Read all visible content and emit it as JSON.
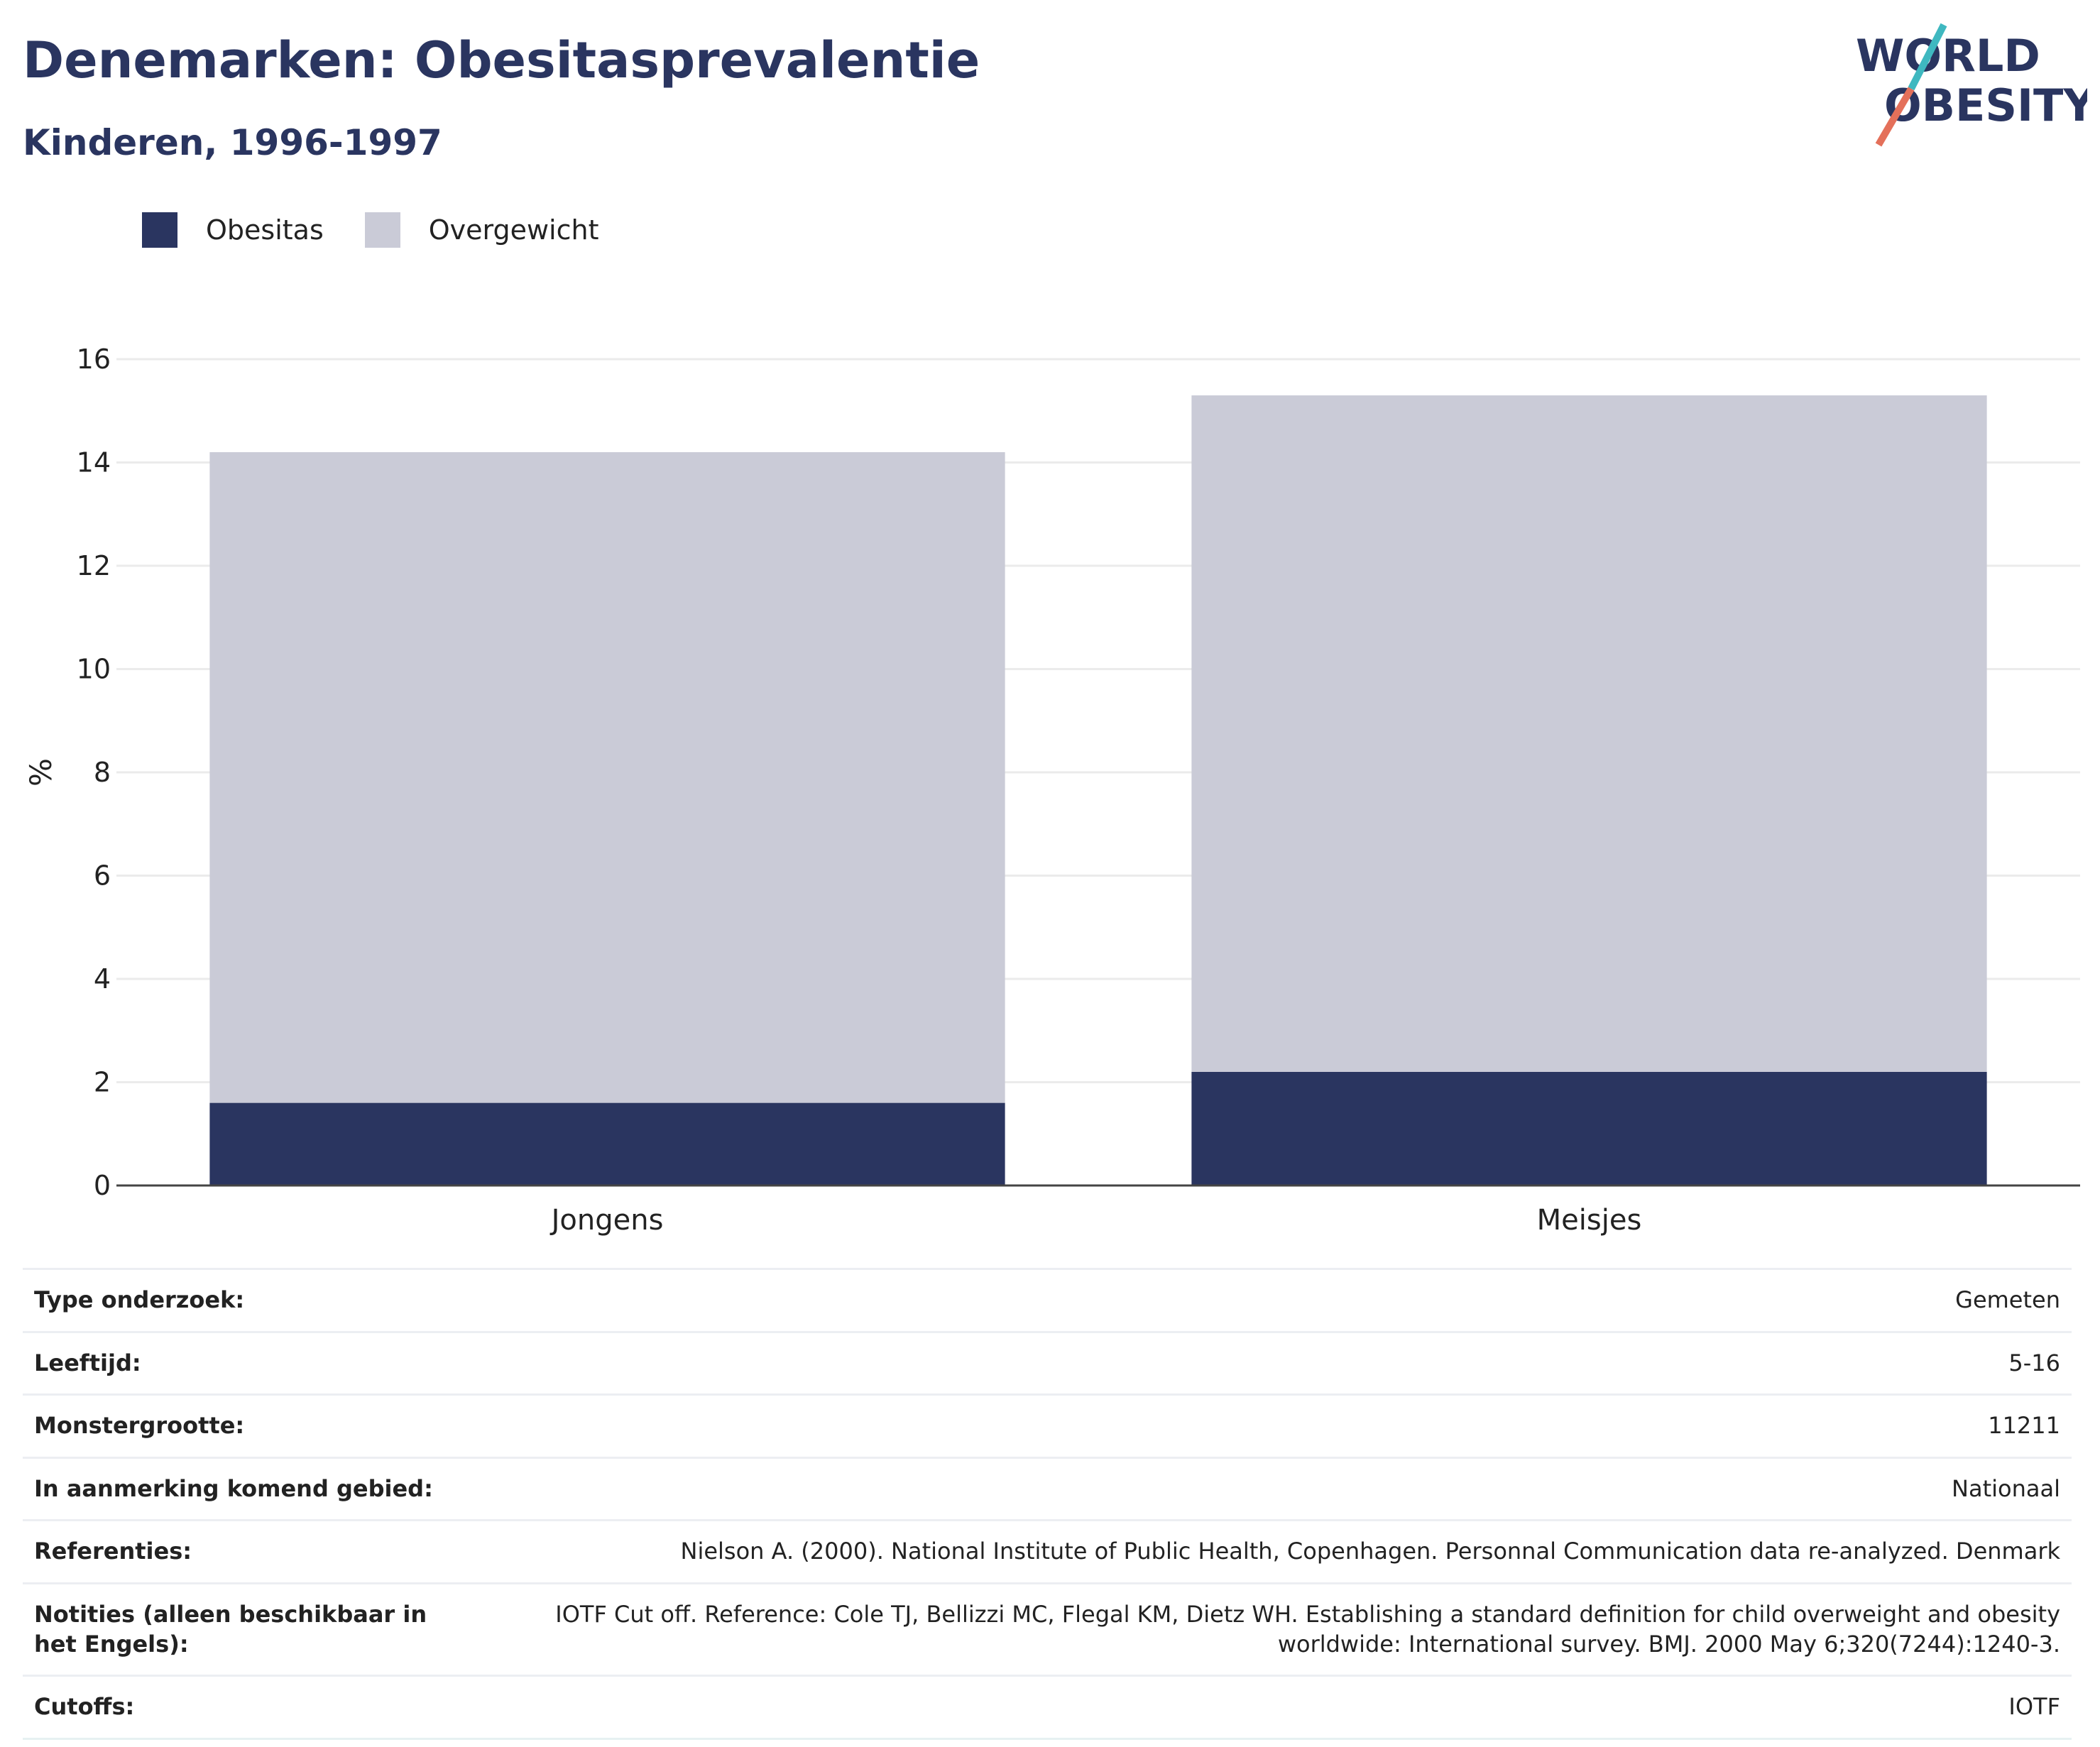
{
  "header": {
    "title": "Denemarken: Obesitasprevalentie",
    "subtitle": "Kinderen, 1996-1997"
  },
  "logo": {
    "line1": "WORLD",
    "line2": "OBESITY",
    "colors": {
      "text": "#2a3560",
      "slash_teal": "#3fb8c0",
      "slash_coral": "#e4705a"
    }
  },
  "chart_data": {
    "type": "bar",
    "stacked": true,
    "categories": [
      "Jongens",
      "Meisjes"
    ],
    "series": [
      {
        "name": "Obesitas",
        "values": [
          1.6,
          2.2
        ],
        "color": "#2a3560"
      },
      {
        "name": "Overgewicht",
        "values": [
          12.6,
          13.1
        ],
        "color": "#cacbd7"
      }
    ],
    "totals": [
      14.2,
      15.3
    ],
    "ylabel": "%",
    "ylim": [
      0,
      16
    ],
    "yticks": [
      0,
      2,
      4,
      6,
      8,
      10,
      12,
      14,
      16
    ],
    "grid": true,
    "legend_position": "top-left"
  },
  "info_table": [
    {
      "key": "Type onderzoek:",
      "value": "Gemeten"
    },
    {
      "key": "Leeftijd:",
      "value": "5-16"
    },
    {
      "key": "Monstergrootte:",
      "value": "11211"
    },
    {
      "key": "In aanmerking komend gebied:",
      "value": "Nationaal"
    },
    {
      "key": "Referenties:",
      "value": "Nielson A. (2000). National Institute of Public Health, Copenhagen. Personnal Communication data re-analyzed. Denmark"
    },
    {
      "key": "Notities (alleen beschikbaar in het Engels):",
      "value": "IOTF Cut off. Reference: Cole TJ, Bellizzi MC, Flegal KM, Dietz WH. Establishing a standard definition for child overweight and obesity worldwide: International survey. BMJ. 2000 May 6;320(7244):1240-3."
    },
    {
      "key": "Cutoffs:",
      "value": "IOTF"
    }
  ]
}
